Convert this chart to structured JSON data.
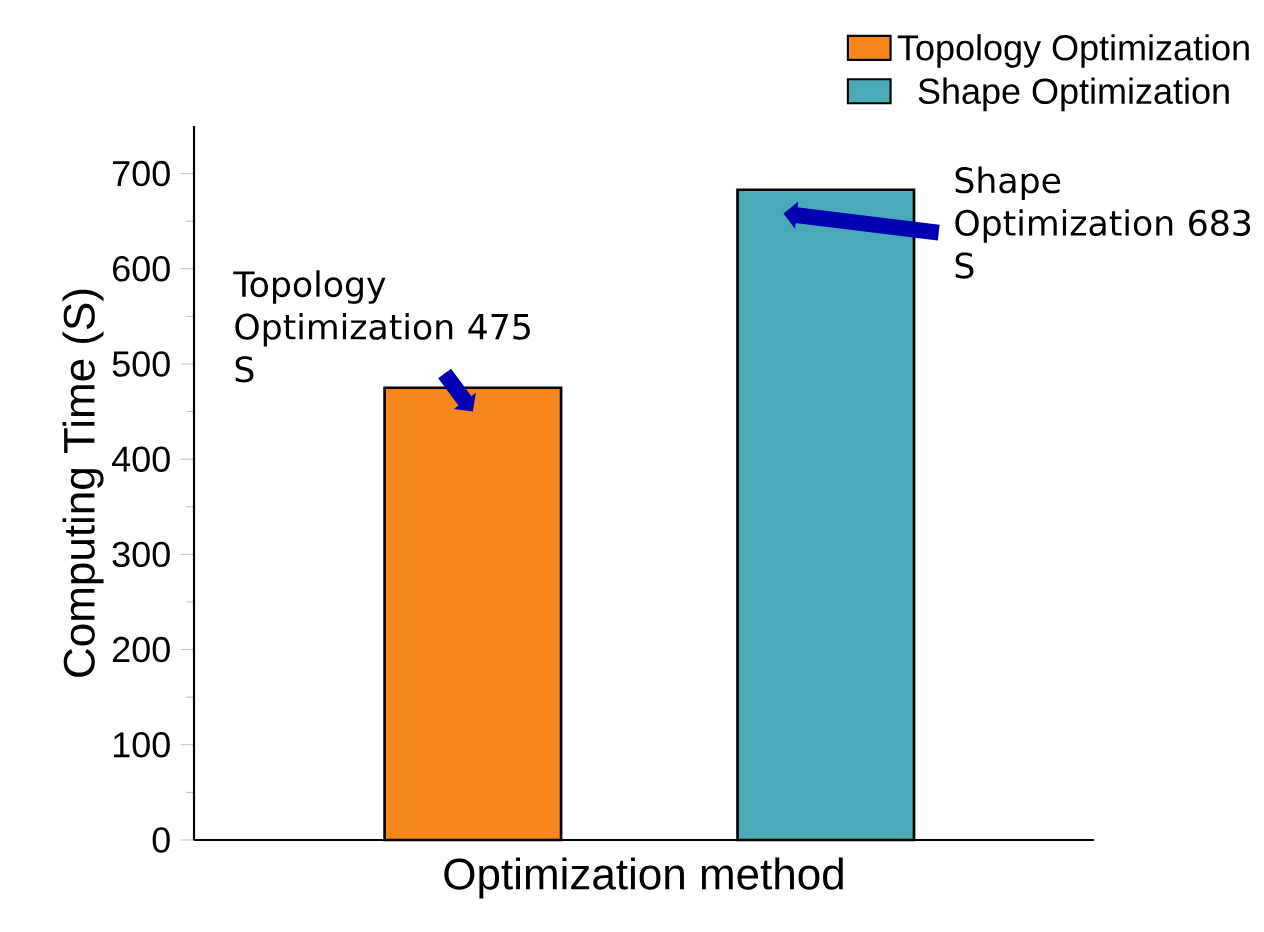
{
  "chart_data": {
    "type": "bar",
    "xlabel": "Optimization method",
    "ylabel": "Computing Time (S)",
    "categories": [
      null,
      null
    ],
    "series": [
      {
        "name": "Topology Optimization",
        "color": "#f7861c",
        "values": [
          475,
          null
        ]
      },
      {
        "name": "Shape Optimization",
        "color": "#4aaab8",
        "values": [
          null,
          683
        ]
      }
    ],
    "ylim": [
      0,
      750
    ],
    "yticks": [
      0,
      100,
      200,
      300,
      400,
      500,
      600,
      700
    ],
    "legend": "top right",
    "annotations": [
      "Topology Optimization 475 S",
      "Shape Optimization 683 S"
    ]
  }
}
